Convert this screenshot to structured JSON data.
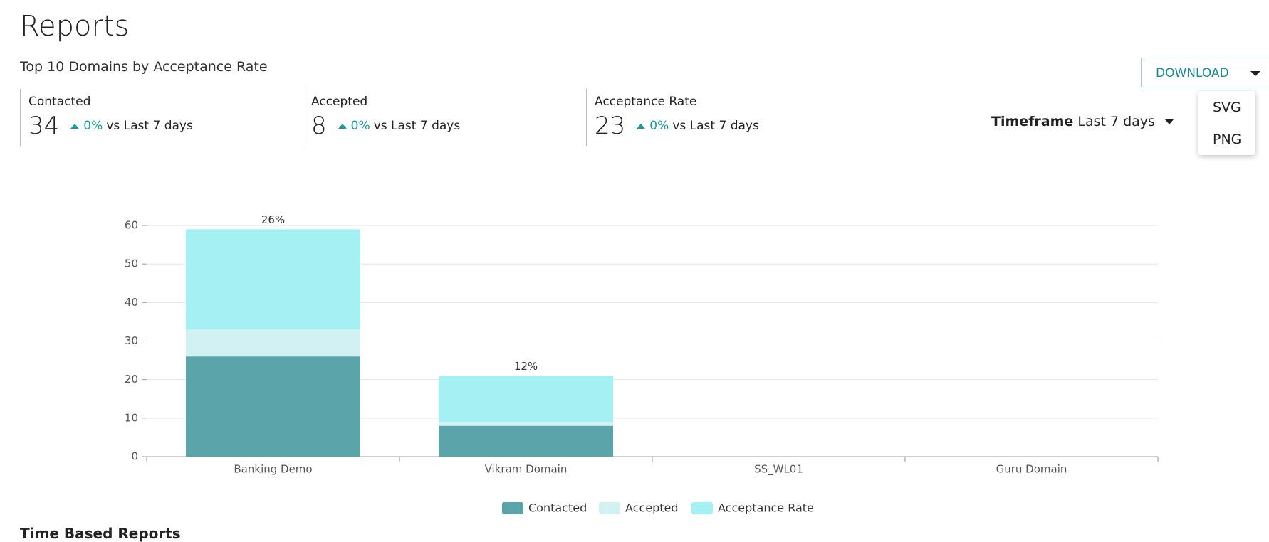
{
  "header": {
    "title": "Reports",
    "subtitle": "Top 10 Domains by Acceptance Rate"
  },
  "stats": [
    {
      "label": "Contacted",
      "value": "34",
      "change": "0%",
      "compare": "vs Last 7 days"
    },
    {
      "label": "Accepted",
      "value": "8",
      "change": "0%",
      "compare": "vs Last 7 days"
    },
    {
      "label": "Acceptance Rate",
      "value": "23",
      "change": "0%",
      "compare": "vs Last 7 days"
    }
  ],
  "timeframe": {
    "label": "Timeframe",
    "value": "Last 7 days"
  },
  "download": {
    "button": "DOWNLOAD",
    "options": [
      "SVG",
      "PNG"
    ]
  },
  "next_section": "Time Based Reports",
  "chart_data": {
    "type": "stacked_bar",
    "categories": [
      "Banking Demo",
      "Vikram Domain",
      "SS_WL01",
      "Guru Domain"
    ],
    "series": [
      {
        "name": "Contacted",
        "color": "#5ba4aa",
        "values": [
          26,
          8,
          0,
          0
        ]
      },
      {
        "name": "Accepted",
        "color": "#d2f1f3",
        "values": [
          7,
          1,
          0,
          0
        ]
      },
      {
        "name": "Acceptance Rate",
        "color": "#a4f0f2",
        "values": [
          26,
          12,
          0,
          0
        ],
        "value_labels": [
          "26%",
          "12%",
          null,
          null
        ]
      }
    ],
    "ylim": [
      0,
      60
    ],
    "yticks": [
      0,
      10,
      20,
      30,
      40,
      50,
      60
    ],
    "grid": true,
    "legend": "bottom"
  }
}
